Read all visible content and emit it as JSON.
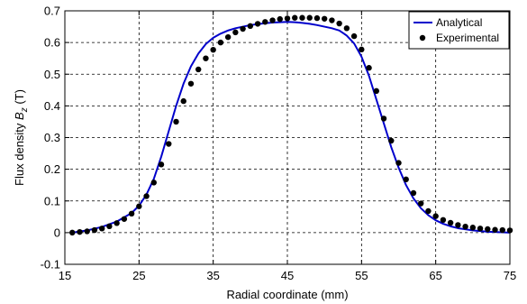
{
  "chart_data": {
    "type": "line",
    "xlabel": "Radial coordinate (mm)",
    "ylabel": {
      "prefix": "Flux density ",
      "symbol": "B",
      "subscript": "z",
      "suffix": " (T)"
    },
    "xlim": [
      15,
      75
    ],
    "ylim": [
      -0.1,
      0.7
    ],
    "xticks": [
      15,
      25,
      35,
      45,
      55,
      65,
      75
    ],
    "yticks": [
      -0.1,
      0,
      0.1,
      0.2,
      0.3,
      0.4,
      0.5,
      0.6,
      0.7
    ],
    "grid": true,
    "legend_position": "top-right",
    "series": [
      {
        "name": "Analytical",
        "style": "line",
        "color": "#0000cc",
        "x": [
          16,
          18,
          20,
          22,
          24,
          25,
          26,
          27,
          28,
          29,
          30,
          31,
          32,
          33,
          34,
          35,
          36,
          37,
          38,
          39,
          40,
          41,
          42,
          43,
          44,
          45,
          46,
          47,
          48,
          49,
          50,
          51,
          52,
          53,
          54,
          55,
          56,
          57,
          58,
          59,
          60,
          61,
          62,
          63,
          64,
          65,
          66,
          67,
          68,
          70,
          72,
          74,
          75
        ],
        "y": [
          0.0,
          0.007,
          0.018,
          0.035,
          0.062,
          0.085,
          0.12,
          0.17,
          0.24,
          0.32,
          0.4,
          0.47,
          0.525,
          0.565,
          0.595,
          0.615,
          0.628,
          0.638,
          0.645,
          0.65,
          0.655,
          0.658,
          0.661,
          0.663,
          0.664,
          0.665,
          0.664,
          0.662,
          0.659,
          0.655,
          0.65,
          0.645,
          0.638,
          0.622,
          0.597,
          0.555,
          0.495,
          0.42,
          0.345,
          0.27,
          0.205,
          0.15,
          0.108,
          0.077,
          0.055,
          0.039,
          0.028,
          0.02,
          0.014,
          0.007,
          0.003,
          0.001,
          0.0
        ]
      },
      {
        "name": "Experimental",
        "style": "marker",
        "color": "#000000",
        "x": [
          16,
          17,
          18,
          19,
          20,
          21,
          22,
          23,
          24,
          25,
          26,
          27,
          28,
          29,
          30,
          31,
          32,
          33,
          34,
          35,
          36,
          37,
          38,
          39,
          40,
          41,
          42,
          43,
          44,
          45,
          46,
          47,
          48,
          49,
          50,
          51,
          52,
          53,
          54,
          55,
          56,
          57,
          58,
          59,
          60,
          61,
          62,
          63,
          64,
          65,
          66,
          67,
          68,
          69,
          70,
          71,
          72,
          73,
          74,
          75
        ],
        "y": [
          0.0,
          0.002,
          0.004,
          0.008,
          0.013,
          0.02,
          0.03,
          0.043,
          0.06,
          0.083,
          0.115,
          0.158,
          0.215,
          0.28,
          0.35,
          0.415,
          0.47,
          0.515,
          0.55,
          0.577,
          0.6,
          0.617,
          0.632,
          0.643,
          0.652,
          0.659,
          0.665,
          0.67,
          0.674,
          0.676,
          0.678,
          0.678,
          0.678,
          0.677,
          0.675,
          0.67,
          0.66,
          0.645,
          0.62,
          0.578,
          0.52,
          0.447,
          0.36,
          0.29,
          0.22,
          0.168,
          0.125,
          0.092,
          0.068,
          0.052,
          0.04,
          0.031,
          0.024,
          0.019,
          0.016,
          0.013,
          0.011,
          0.009,
          0.008,
          0.007
        ]
      }
    ]
  }
}
